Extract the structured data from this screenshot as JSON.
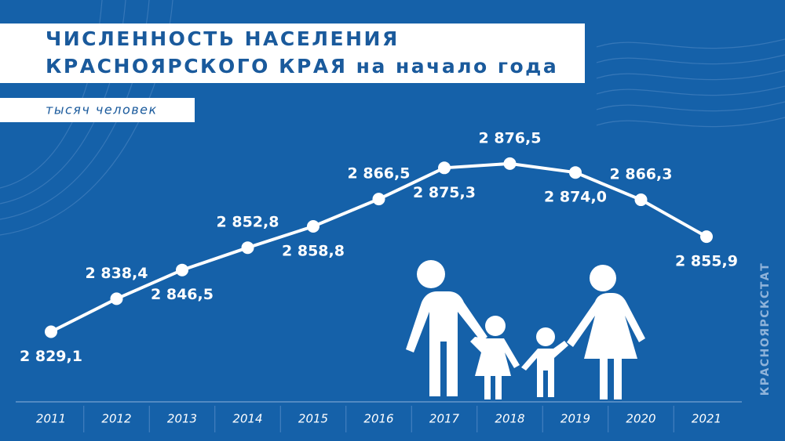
{
  "chart_data": {
    "type": "line",
    "title": [
      "ЧИСЛЕННОСТЬ НАСЕЛЕНИЯ",
      "КРАСНОЯРСКОГО КРАЯ на начало года"
    ],
    "subtitle": "тысяч человек",
    "source": "КРАСНОЯРСКСТАТ",
    "categories": [
      "2011",
      "2012",
      "2013",
      "2014",
      "2015",
      "2016",
      "2017",
      "2018",
      "2019",
      "2020",
      "2021"
    ],
    "values": [
      2829.1,
      2838.4,
      2846.5,
      2852.8,
      2858.8,
      2866.5,
      2875.3,
      2876.5,
      2874.0,
      2866.3,
      2855.9
    ],
    "value_labels": [
      "2 829,1",
      "2 838,4",
      "2 846,5",
      "2 852,8",
      "2 858,8",
      "2 866,5",
      "2 875,3",
      "2 876,5",
      "2 874,0",
      "2 866,3",
      "2 855,9"
    ],
    "color": "#ffffff",
    "ylim": [
      2810,
      2916
    ]
  }
}
